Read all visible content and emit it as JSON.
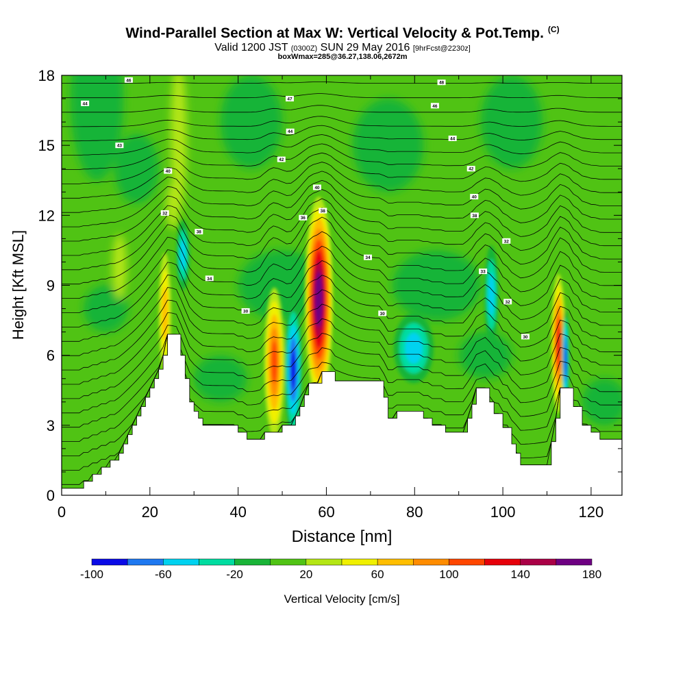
{
  "header": {
    "title": "Wind-Parallel Section at Max W: Vertical Velocity & Pot.Temp.",
    "copyright": "(C)",
    "valid_prefix": "Valid 1200 JST",
    "valid_utc": "(0300Z)",
    "valid_date": "SUN 29 May 2016",
    "forecast": "[9hrFcst@2230z]",
    "box_info": "boxWmax=285@36.27,138.06,2672m"
  },
  "chart_data": {
    "type": "heatmap",
    "xlabel": "Distance [nm]",
    "ylabel": "Height [Kft MSL]",
    "xlim": [
      0,
      127
    ],
    "ylim": [
      0,
      18
    ],
    "x_ticks": [
      0,
      20,
      40,
      60,
      80,
      100,
      120
    ],
    "y_ticks": [
      0,
      3,
      6,
      9,
      12,
      15,
      18
    ],
    "colorbar": {
      "label": "Vertical Velocity [cm/s]",
      "bounds": [
        -100,
        -80,
        -60,
        -40,
        -20,
        0,
        20,
        40,
        60,
        80,
        100,
        120,
        140,
        160,
        180
      ],
      "tick_labels": [
        -100,
        -60,
        -20,
        20,
        60,
        100,
        140,
        180
      ],
      "colors": [
        "#0a0ae6",
        "#1e78f0",
        "#00d2f0",
        "#00dca0",
        "#19b437",
        "#50c314",
        "#b4e614",
        "#f0f000",
        "#ffbe00",
        "#ff8c00",
        "#ff4600",
        "#e6000a",
        "#aa0046",
        "#6e0082"
      ]
    },
    "terrain_kft": [
      [
        0,
        0.3
      ],
      [
        5,
        0.3
      ],
      [
        5,
        0.6
      ],
      [
        7,
        0.6
      ],
      [
        7,
        0.9
      ],
      [
        9,
        0.9
      ],
      [
        9,
        1.2
      ],
      [
        11,
        1.2
      ],
      [
        11,
        1.5
      ],
      [
        13,
        1.5
      ],
      [
        13,
        1.8
      ],
      [
        14,
        1.8
      ],
      [
        14,
        2.2
      ],
      [
        15,
        2.2
      ],
      [
        15,
        2.6
      ],
      [
        16,
        2.6
      ],
      [
        16,
        3.0
      ],
      [
        17,
        3.0
      ],
      [
        17,
        3.4
      ],
      [
        18,
        3.4
      ],
      [
        18,
        3.8
      ],
      [
        19,
        3.8
      ],
      [
        19,
        4.2
      ],
      [
        20,
        4.2
      ],
      [
        20,
        4.6
      ],
      [
        21,
        4.6
      ],
      [
        21,
        5.0
      ],
      [
        22,
        5.0
      ],
      [
        22,
        5.4
      ],
      [
        23,
        5.4
      ],
      [
        23,
        6.0
      ],
      [
        24,
        6.0
      ],
      [
        24,
        6.9
      ],
      [
        27,
        6.9
      ],
      [
        27,
        6.0
      ],
      [
        28,
        6.0
      ],
      [
        28,
        5.0
      ],
      [
        29,
        5.0
      ],
      [
        29,
        4.0
      ],
      [
        30,
        4.0
      ],
      [
        30,
        3.6
      ],
      [
        31,
        3.6
      ],
      [
        31,
        3.3
      ],
      [
        32,
        3.3
      ],
      [
        32,
        3.0
      ],
      [
        40,
        3.0
      ],
      [
        40,
        2.7
      ],
      [
        42,
        2.7
      ],
      [
        42,
        2.4
      ],
      [
        46,
        2.4
      ],
      [
        46,
        2.7
      ],
      [
        50,
        2.7
      ],
      [
        50,
        3.0
      ],
      [
        53,
        3.0
      ],
      [
        53,
        3.4
      ],
      [
        54,
        3.4
      ],
      [
        54,
        3.8
      ],
      [
        55,
        3.8
      ],
      [
        55,
        4.3
      ],
      [
        56,
        4.3
      ],
      [
        56,
        4.8
      ],
      [
        59,
        4.8
      ],
      [
        59,
        5.3
      ],
      [
        62,
        5.3
      ],
      [
        62,
        4.9
      ],
      [
        73,
        4.9
      ],
      [
        73,
        4.2
      ],
      [
        74,
        4.2
      ],
      [
        74,
        3.3
      ],
      [
        76,
        3.3
      ],
      [
        76,
        3.6
      ],
      [
        82,
        3.6
      ],
      [
        82,
        3.3
      ],
      [
        84,
        3.3
      ],
      [
        84,
        3.0
      ],
      [
        87,
        3.0
      ],
      [
        87,
        2.7
      ],
      [
        92,
        2.7
      ],
      [
        92,
        3.3
      ],
      [
        93,
        3.3
      ],
      [
        93,
        3.9
      ],
      [
        94,
        3.9
      ],
      [
        94,
        4.6
      ],
      [
        97,
        4.6
      ],
      [
        97,
        4.0
      ],
      [
        98,
        4.0
      ],
      [
        98,
        3.5
      ],
      [
        100,
        3.5
      ],
      [
        100,
        2.9
      ],
      [
        102,
        2.9
      ],
      [
        102,
        2.2
      ],
      [
        103,
        2.2
      ],
      [
        103,
        1.8
      ],
      [
        104,
        1.8
      ],
      [
        104,
        1.3
      ],
      [
        111,
        1.3
      ],
      [
        111,
        2.3
      ],
      [
        112,
        2.3
      ],
      [
        112,
        3.3
      ],
      [
        113,
        3.3
      ],
      [
        113,
        4.6
      ],
      [
        116,
        4.6
      ],
      [
        116,
        3.8
      ],
      [
        118,
        3.8
      ],
      [
        118,
        3.0
      ],
      [
        120,
        3.0
      ],
      [
        120,
        2.7
      ],
      [
        122,
        2.7
      ],
      [
        122,
        2.4
      ],
      [
        127,
        2.4
      ]
    ],
    "updraft_cores": [
      {
        "x": 58.3,
        "y": 8.4,
        "peak_w": 180
      },
      {
        "x": 48.2,
        "y": 5.7,
        "peak_w": 110
      },
      {
        "x": 112.6,
        "y": 6.5,
        "peak_w": 130
      },
      {
        "x": 23.4,
        "y": 7.8,
        "peak_w": 75
      }
    ],
    "downdraft_cores": [
      {
        "x": 52.5,
        "y": 5.4,
        "peak_w": -90
      },
      {
        "x": 114.2,
        "y": 5.8,
        "peak_w": -85
      },
      {
        "x": 27.5,
        "y": 10.3,
        "peak_w": -45
      },
      {
        "x": 97.4,
        "y": 8.6,
        "peak_w": -45
      },
      {
        "x": 79.8,
        "y": 6.3,
        "peak_w": -45
      }
    ],
    "isentrope_labels": [
      {
        "x": 15.2,
        "y": 17.8,
        "text": "46"
      },
      {
        "x": 5.3,
        "y": 16.8,
        "text": "44"
      },
      {
        "x": 13.1,
        "y": 15.0,
        "text": "43"
      },
      {
        "x": 24.1,
        "y": 13.9,
        "text": "40"
      },
      {
        "x": 23.4,
        "y": 12.1,
        "text": "32"
      },
      {
        "x": 31.1,
        "y": 11.3,
        "text": "38"
      },
      {
        "x": 33.5,
        "y": 9.3,
        "text": "34"
      },
      {
        "x": 41.7,
        "y": 7.9,
        "text": "30"
      },
      {
        "x": 51.7,
        "y": 17.0,
        "text": "47"
      },
      {
        "x": 51.8,
        "y": 15.6,
        "text": "44"
      },
      {
        "x": 49.8,
        "y": 14.4,
        "text": "42"
      },
      {
        "x": 57.9,
        "y": 13.2,
        "text": "40"
      },
      {
        "x": 54.7,
        "y": 11.9,
        "text": "36"
      },
      {
        "x": 59.2,
        "y": 12.2,
        "text": "38"
      },
      {
        "x": 69.4,
        "y": 10.2,
        "text": "34"
      },
      {
        "x": 72.7,
        "y": 7.8,
        "text": "30"
      },
      {
        "x": 86.1,
        "y": 17.7,
        "text": "48"
      },
      {
        "x": 84.6,
        "y": 16.7,
        "text": "46"
      },
      {
        "x": 88.6,
        "y": 15.3,
        "text": "44"
      },
      {
        "x": 92.8,
        "y": 14.0,
        "text": "42"
      },
      {
        "x": 93.5,
        "y": 12.8,
        "text": "40"
      },
      {
        "x": 93.6,
        "y": 12.0,
        "text": "38"
      },
      {
        "x": 100.8,
        "y": 10.9,
        "text": "32"
      },
      {
        "x": 95.5,
        "y": 9.6,
        "text": "33"
      },
      {
        "x": 101.1,
        "y": 8.3,
        "text": "32"
      },
      {
        "x": 105.1,
        "y": 6.8,
        "text": "30"
      }
    ]
  }
}
